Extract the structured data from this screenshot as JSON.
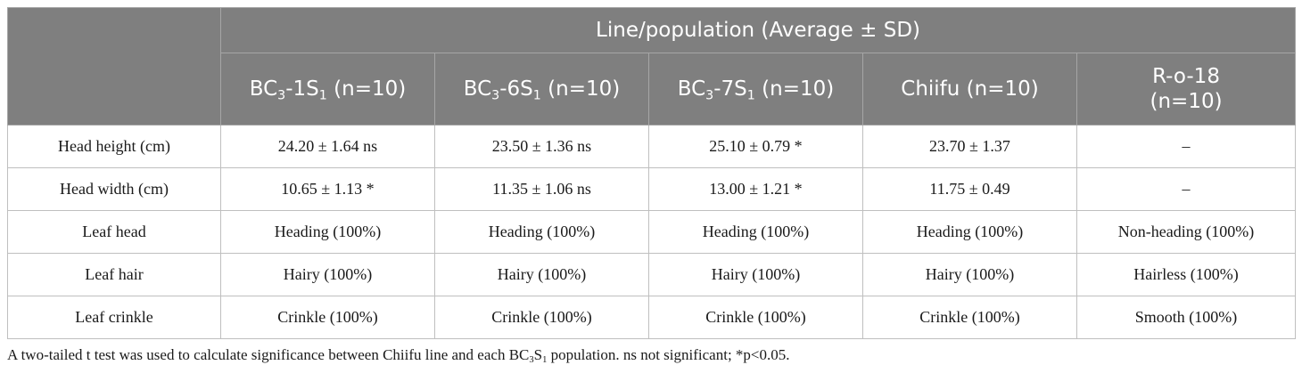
{
  "table": {
    "group_header": "Line/population (Average ± SD)",
    "columns": [
      {
        "pre": "BC",
        "sub1": "3",
        "mid": "-1S",
        "sub2": "1",
        "post": " (n=10)"
      },
      {
        "pre": "BC",
        "sub1": "3",
        "mid": "-6S",
        "sub2": "1",
        "post": " (n=10)"
      },
      {
        "pre": "BC",
        "sub1": "3",
        "mid": "-7S",
        "sub2": "1",
        "post": " (n=10)"
      },
      {
        "label": "Chiifu (n=10)"
      },
      {
        "line1": "R-o-18",
        "line2": "(n=10)"
      }
    ],
    "rows": [
      {
        "label": "Head height (cm)",
        "cells": [
          "24.20 ± 1.64 ns",
          "23.50 ± 1.36 ns",
          "25.10 ± 0.79 *",
          "23.70 ± 1.37",
          "–"
        ]
      },
      {
        "label": "Head width (cm)",
        "cells": [
          "10.65 ± 1.13 *",
          "11.35 ± 1.06 ns",
          "13.00 ± 1.21 *",
          "11.75 ± 0.49",
          "–"
        ]
      },
      {
        "label": "Leaf head",
        "cells": [
          "Heading (100%)",
          "Heading (100%)",
          "Heading (100%)",
          "Heading (100%)",
          "Non-heading (100%)"
        ]
      },
      {
        "label": "Leaf hair",
        "cells": [
          "Hairy (100%)",
          "Hairy (100%)",
          "Hairy (100%)",
          "Hairy (100%)",
          "Hairless (100%)"
        ]
      },
      {
        "label": "Leaf crinkle",
        "cells": [
          "Crinkle (100%)",
          "Crinkle (100%)",
          "Crinkle (100%)",
          "Crinkle (100%)",
          "Smooth (100%)"
        ]
      }
    ]
  },
  "footnote": {
    "pre": "A two-tailed t test was used to calculate significance between Chiifu line and each BC",
    "sub1": "3",
    "mid": "S",
    "sub2": "1",
    "post": " population. ns not significant; *p<0.05."
  }
}
